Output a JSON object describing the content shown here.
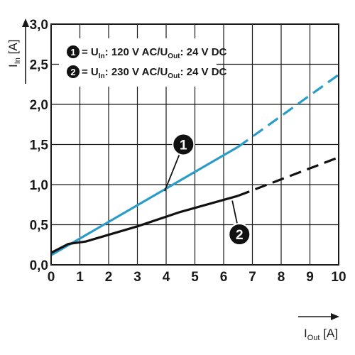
{
  "chart_data": {
    "type": "line",
    "title": "",
    "xlabel": {
      "main": "I",
      "sub": "Out",
      "unit": "[A]"
    },
    "ylabel": {
      "main": "I",
      "sub": "In",
      "unit": "[A]"
    },
    "xlim": [
      0,
      10
    ],
    "ylim": [
      0,
      3
    ],
    "x_ticks": [
      "0",
      "1",
      "2",
      "3",
      "4",
      "5",
      "6",
      "7",
      "8",
      "9",
      "10"
    ],
    "y_ticks": [
      "0,0",
      "0,5",
      "1,0",
      "1,5",
      "2,0",
      "2,5",
      "3,0"
    ],
    "grid": true,
    "legend_position": "top-left",
    "legend": [
      {
        "marker": "1",
        "prefix": "= U",
        "sub1": "In",
        "mid": ": 120 V AC/U",
        "sub2": "Out",
        "suffix": ": 24 V DC"
      },
      {
        "marker": "2",
        "prefix": "= U",
        "sub1": "In",
        "mid": ": 230 V AC/U",
        "sub2": "Out",
        "suffix": ": 24 V DC"
      }
    ],
    "series": [
      {
        "marker": "1",
        "color": "#2b9cc8",
        "solid": [
          [
            0,
            0.12
          ],
          [
            6.5,
            1.47
          ]
        ],
        "dashed": [
          [
            6.5,
            1.47
          ],
          [
            10,
            2.37
          ]
        ]
      },
      {
        "marker": "2",
        "color": "#111111",
        "solid": [
          [
            0,
            0.15
          ],
          [
            0.6,
            0.26
          ],
          [
            1.2,
            0.29
          ],
          [
            3,
            0.48
          ],
          [
            4.5,
            0.66
          ],
          [
            6.5,
            0.86
          ]
        ],
        "dashed": [
          [
            6.5,
            0.86
          ],
          [
            10,
            1.34
          ]
        ]
      }
    ],
    "annotations": [
      {
        "label": "1",
        "point": [
          3.95,
          0.92
        ],
        "badge_at": [
          4.6,
          1.5
        ]
      },
      {
        "label": "2",
        "point": [
          6.3,
          0.8
        ],
        "badge_at": [
          6.55,
          0.38
        ]
      }
    ]
  }
}
